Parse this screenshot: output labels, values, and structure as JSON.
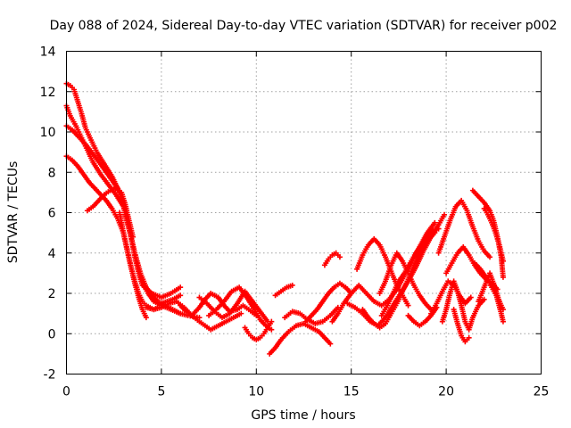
{
  "chart_data": {
    "type": "scatter",
    "title": "Day 088 of 2024, Sidereal Day-to-day VTEC variation (SDTVAR) for receiver p002",
    "xlabel": "GPS time / hours",
    "ylabel": "SDTVAR / TECUs",
    "xlim": [
      0,
      25
    ],
    "ylim": [
      -2,
      14
    ],
    "xticks": [
      0,
      5,
      10,
      15,
      20,
      25
    ],
    "yticks": [
      -2,
      0,
      2,
      4,
      6,
      8,
      10,
      12,
      14
    ],
    "grid": true,
    "marker": "plus",
    "series_color": "#ff0000",
    "series": [
      {
        "name": "trace-1",
        "x": [
          0.0,
          0.2,
          0.4,
          0.6,
          0.8,
          1.0,
          1.3,
          1.6,
          2.0,
          2.4,
          2.8,
          3.0,
          3.2,
          3.4,
          3.6,
          3.8,
          4.0,
          4.5,
          5.0,
          5.5,
          6.0
        ],
        "y": [
          12.4,
          12.3,
          12.1,
          11.5,
          10.9,
          10.2,
          9.6,
          9.0,
          8.4,
          7.8,
          7.0,
          6.5,
          5.6,
          4.8,
          3.8,
          3.0,
          2.4,
          2.0,
          1.8,
          2.0,
          2.3
        ]
      },
      {
        "name": "trace-2",
        "x": [
          0.0,
          0.2,
          0.5,
          0.8,
          1.1,
          1.4,
          1.8,
          2.2,
          2.6,
          3.0,
          3.2,
          3.4,
          3.6,
          3.8,
          4.0,
          4.3,
          4.6,
          5.0,
          5.5,
          6.0
        ],
        "y": [
          11.3,
          10.8,
          10.3,
          9.7,
          9.1,
          8.5,
          7.9,
          7.4,
          6.9,
          6.3,
          5.5,
          4.8,
          4.0,
          3.2,
          2.5,
          2.0,
          1.6,
          1.4,
          1.2,
          1.0
        ]
      },
      {
        "name": "trace-3",
        "x": [
          0.0,
          0.3,
          0.6,
          1.0,
          1.4,
          1.8,
          2.1,
          2.4,
          2.7,
          3.0,
          3.3,
          3.6,
          3.9,
          4.2,
          4.5,
          4.8,
          5.2,
          5.6,
          6.0,
          6.4,
          7.0
        ],
        "y": [
          10.3,
          10.1,
          9.8,
          9.4,
          8.9,
          8.4,
          8.0,
          7.6,
          7.2,
          6.5,
          5.2,
          4.0,
          3.0,
          2.3,
          1.9,
          1.6,
          1.4,
          1.2,
          1.0,
          0.9,
          0.8
        ]
      },
      {
        "name": "trace-4",
        "x": [
          0.0,
          0.3,
          0.6,
          0.9,
          1.2,
          1.5,
          1.8,
          2.1,
          2.4,
          2.7,
          3.0,
          3.2,
          3.4,
          3.6,
          3.8,
          4.0,
          4.2
        ],
        "y": [
          8.8,
          8.6,
          8.3,
          7.9,
          7.5,
          7.2,
          6.9,
          6.6,
          6.2,
          5.7,
          5.0,
          4.2,
          3.3,
          2.5,
          1.8,
          1.2,
          0.8
        ]
      },
      {
        "name": "trace-5",
        "x": [
          1.1,
          1.4,
          1.7,
          2.0,
          2.3,
          2.6,
          2.9,
          3.1,
          3.3,
          3.5
        ],
        "y": [
          6.1,
          6.3,
          6.6,
          6.9,
          7.1,
          7.2,
          7.0,
          6.4,
          5.6,
          4.8
        ]
      },
      {
        "name": "trace-6",
        "x": [
          2.8,
          3.0,
          3.2,
          3.4,
          3.6,
          3.8,
          4.0,
          4.2,
          4.4,
          4.6,
          4.8,
          5.0,
          5.3,
          5.6,
          6.0
        ],
        "y": [
          6.0,
          5.0,
          4.1,
          3.3,
          2.6,
          2.0,
          1.6,
          1.4,
          1.3,
          1.2,
          1.3,
          1.5,
          1.6,
          1.7,
          1.9
        ]
      },
      {
        "name": "trace-7",
        "x": [
          4.2,
          4.6,
          5.0,
          5.4,
          5.8,
          6.2,
          6.6,
          7.0,
          7.3,
          7.6,
          8.0,
          8.4,
          8.8,
          9.2
        ],
        "y": [
          1.3,
          1.2,
          1.3,
          1.5,
          1.6,
          1.3,
          0.9,
          0.6,
          0.4,
          0.2,
          0.4,
          0.6,
          0.8,
          1.0
        ]
      },
      {
        "name": "trace-8",
        "x": [
          6.0,
          6.3,
          6.6,
          7.0,
          7.3,
          7.6,
          8.0,
          8.3,
          8.6,
          9.0,
          9.3,
          9.6,
          10.0
        ],
        "y": [
          1.4,
          1.1,
          0.9,
          1.3,
          1.7,
          2.0,
          1.8,
          1.4,
          1.1,
          1.2,
          1.4,
          1.2,
          0.9
        ]
      },
      {
        "name": "trace-9",
        "x": [
          7.0,
          7.4,
          7.8,
          8.2,
          8.6,
          9.0,
          9.4,
          9.8,
          10.2,
          10.6
        ],
        "y": [
          1.8,
          1.5,
          1.1,
          0.8,
          1.0,
          1.5,
          2.1,
          1.6,
          1.1,
          0.6
        ]
      },
      {
        "name": "trace-10",
        "x": [
          7.5,
          7.9,
          8.3,
          8.7,
          9.1,
          9.5,
          9.9,
          10.2,
          10.5,
          10.8
        ],
        "y": [
          0.9,
          1.2,
          1.6,
          2.1,
          2.3,
          1.8,
          1.2,
          0.7,
          0.4,
          0.2
        ]
      },
      {
        "name": "trace-11",
        "x": [
          9.4,
          9.6,
          9.8,
          10.0,
          10.2,
          10.4,
          10.6,
          10.8
        ],
        "y": [
          0.3,
          0.0,
          -0.2,
          -0.3,
          -0.2,
          0.0,
          0.3,
          0.6
        ]
      },
      {
        "name": "trace-12",
        "x": [
          10.7,
          11.0,
          11.3,
          11.7,
          12.1,
          12.5,
          12.9,
          13.3,
          13.6,
          13.9
        ],
        "y": [
          -1.0,
          -0.7,
          -0.3,
          0.1,
          0.4,
          0.5,
          0.3,
          0.1,
          -0.2,
          -0.5
        ]
      },
      {
        "name": "trace-13",
        "x": [
          11.0,
          11.3,
          11.6,
          11.9
        ],
        "y": [
          1.9,
          2.1,
          2.3,
          2.4
        ]
      },
      {
        "name": "trace-14",
        "x": [
          11.5,
          11.9,
          12.3,
          12.7,
          13.1,
          13.5,
          13.9,
          14.3
        ],
        "y": [
          0.8,
          1.1,
          1.0,
          0.7,
          0.5,
          0.6,
          0.9,
          1.3
        ]
      },
      {
        "name": "trace-15",
        "x": [
          12.6,
          12.9,
          13.2,
          13.5,
          13.8,
          14.1,
          14.4,
          14.7,
          15.0
        ],
        "y": [
          0.6,
          0.9,
          1.2,
          1.6,
          2.0,
          2.3,
          2.5,
          2.3,
          2.0
        ]
      },
      {
        "name": "trace-16",
        "x": [
          13.6,
          13.8,
          14.0,
          14.2,
          14.4
        ],
        "y": [
          3.4,
          3.7,
          3.9,
          4.0,
          3.8
        ]
      },
      {
        "name": "trace-17",
        "x": [
          14.0,
          14.3,
          14.6,
          15.0,
          15.4,
          15.8,
          16.2,
          16.6,
          17.0,
          17.4,
          17.8,
          18.2,
          18.6,
          19.0,
          19.4
        ],
        "y": [
          0.6,
          1.0,
          1.5,
          2.0,
          2.4,
          2.0,
          1.6,
          1.4,
          1.7,
          2.2,
          2.9,
          3.6,
          4.3,
          5.0,
          5.5
        ]
      },
      {
        "name": "trace-18",
        "x": [
          14.8,
          15.2,
          15.6,
          16.0,
          16.4,
          16.8,
          17.2,
          17.6,
          18.0,
          18.4,
          18.8,
          19.2,
          19.6,
          19.9
        ],
        "y": [
          1.5,
          1.3,
          1.0,
          0.6,
          0.4,
          0.8,
          1.4,
          2.0,
          2.6,
          3.3,
          4.1,
          4.8,
          5.4,
          5.9
        ]
      },
      {
        "name": "trace-19",
        "x": [
          15.3,
          15.6,
          15.9,
          16.2,
          16.5,
          16.8,
          17.1,
          17.4,
          17.7,
          18.0
        ],
        "y": [
          3.2,
          3.9,
          4.4,
          4.7,
          4.4,
          3.8,
          3.1,
          2.4,
          1.9,
          1.4
        ]
      },
      {
        "name": "trace-20",
        "x": [
          15.6,
          15.9,
          16.2,
          16.5,
          16.8,
          17.1,
          17.4,
          17.7,
          18.0,
          18.3,
          18.6,
          19.0,
          19.4
        ],
        "y": [
          1.2,
          0.8,
          0.5,
          0.3,
          0.5,
          1.0,
          1.5,
          2.1,
          2.7,
          3.4,
          4.0,
          4.6,
          5.0
        ]
      },
      {
        "name": "trace-21",
        "x": [
          16.5,
          16.8,
          17.1,
          17.4,
          17.7,
          18.0,
          18.3,
          18.6,
          18.9,
          19.2
        ],
        "y": [
          2.0,
          2.6,
          3.4,
          4.0,
          3.6,
          3.0,
          2.4,
          1.9,
          1.5,
          1.2
        ]
      },
      {
        "name": "trace-22",
        "x": [
          16.6,
          16.9,
          17.2,
          17.5,
          17.8,
          18.1,
          18.4,
          18.7,
          19.0,
          19.3,
          19.6
        ],
        "y": [
          0.9,
          1.4,
          2.0,
          2.6,
          3.0,
          3.5,
          4.0,
          4.4,
          4.8,
          5.1,
          5.2
        ]
      },
      {
        "name": "trace-23",
        "x": [
          18.0,
          18.3,
          18.6,
          18.9,
          19.2,
          19.5
        ],
        "y": [
          0.9,
          0.6,
          0.4,
          0.6,
          0.9,
          1.3
        ]
      },
      {
        "name": "trace-24",
        "x": [
          19.2,
          19.5,
          19.8,
          20.1,
          20.4,
          20.7,
          21.0,
          21.3
        ],
        "y": [
          1.0,
          1.5,
          2.1,
          2.6,
          2.4,
          1.9,
          1.5,
          1.8
        ]
      },
      {
        "name": "trace-25",
        "x": [
          19.8,
          20.0,
          20.2,
          20.4,
          20.6,
          20.8,
          21.0,
          21.2,
          21.4,
          21.7,
          22.0
        ],
        "y": [
          0.6,
          1.2,
          2.0,
          2.6,
          2.1,
          1.4,
          0.6,
          0.2,
          0.8,
          1.4,
          1.7
        ]
      },
      {
        "name": "trace-26",
        "x": [
          19.6,
          19.9,
          20.2,
          20.5,
          20.8,
          21.1,
          21.4,
          21.7,
          22.0,
          22.3
        ],
        "y": [
          4.0,
          4.8,
          5.6,
          6.3,
          6.6,
          6.1,
          5.3,
          4.6,
          4.1,
          3.8
        ]
      },
      {
        "name": "trace-27",
        "x": [
          20.0,
          20.3,
          20.6,
          20.9,
          21.2,
          21.5,
          21.8,
          22.1,
          22.4,
          22.7
        ],
        "y": [
          3.0,
          3.5,
          4.0,
          4.3,
          3.9,
          3.4,
          3.0,
          2.7,
          2.5,
          2.2
        ]
      },
      {
        "name": "trace-28",
        "x": [
          20.4,
          20.6,
          20.8,
          21.0,
          21.2
        ],
        "y": [
          1.2,
          0.5,
          -0.1,
          -0.4,
          -0.2
        ]
      },
      {
        "name": "trace-29",
        "x": [
          21.4,
          21.7,
          22.0,
          22.3,
          22.5,
          22.7,
          22.9,
          23.0
        ],
        "y": [
          7.1,
          6.8,
          6.5,
          6.1,
          5.6,
          4.8,
          3.8,
          2.8
        ]
      },
      {
        "name": "trace-30",
        "x": [
          22.0,
          22.2,
          22.4,
          22.6,
          22.8,
          23.0
        ],
        "y": [
          6.2,
          5.9,
          5.5,
          5.0,
          4.4,
          3.6
        ]
      },
      {
        "name": "trace-31",
        "x": [
          21.5,
          21.8,
          22.1,
          22.4,
          22.7,
          23.0
        ],
        "y": [
          3.5,
          3.2,
          2.8,
          2.3,
          1.8,
          1.2
        ]
      },
      {
        "name": "trace-32",
        "x": [
          21.7,
          22.0,
          22.3,
          22.6,
          22.9
        ],
        "y": [
          1.6,
          2.3,
          3.0,
          2.2,
          1.3
        ]
      },
      {
        "name": "trace-33",
        "x": [
          22.5,
          22.7,
          22.9,
          23.0
        ],
        "y": [
          2.5,
          1.7,
          1.0,
          0.6
        ]
      }
    ]
  }
}
